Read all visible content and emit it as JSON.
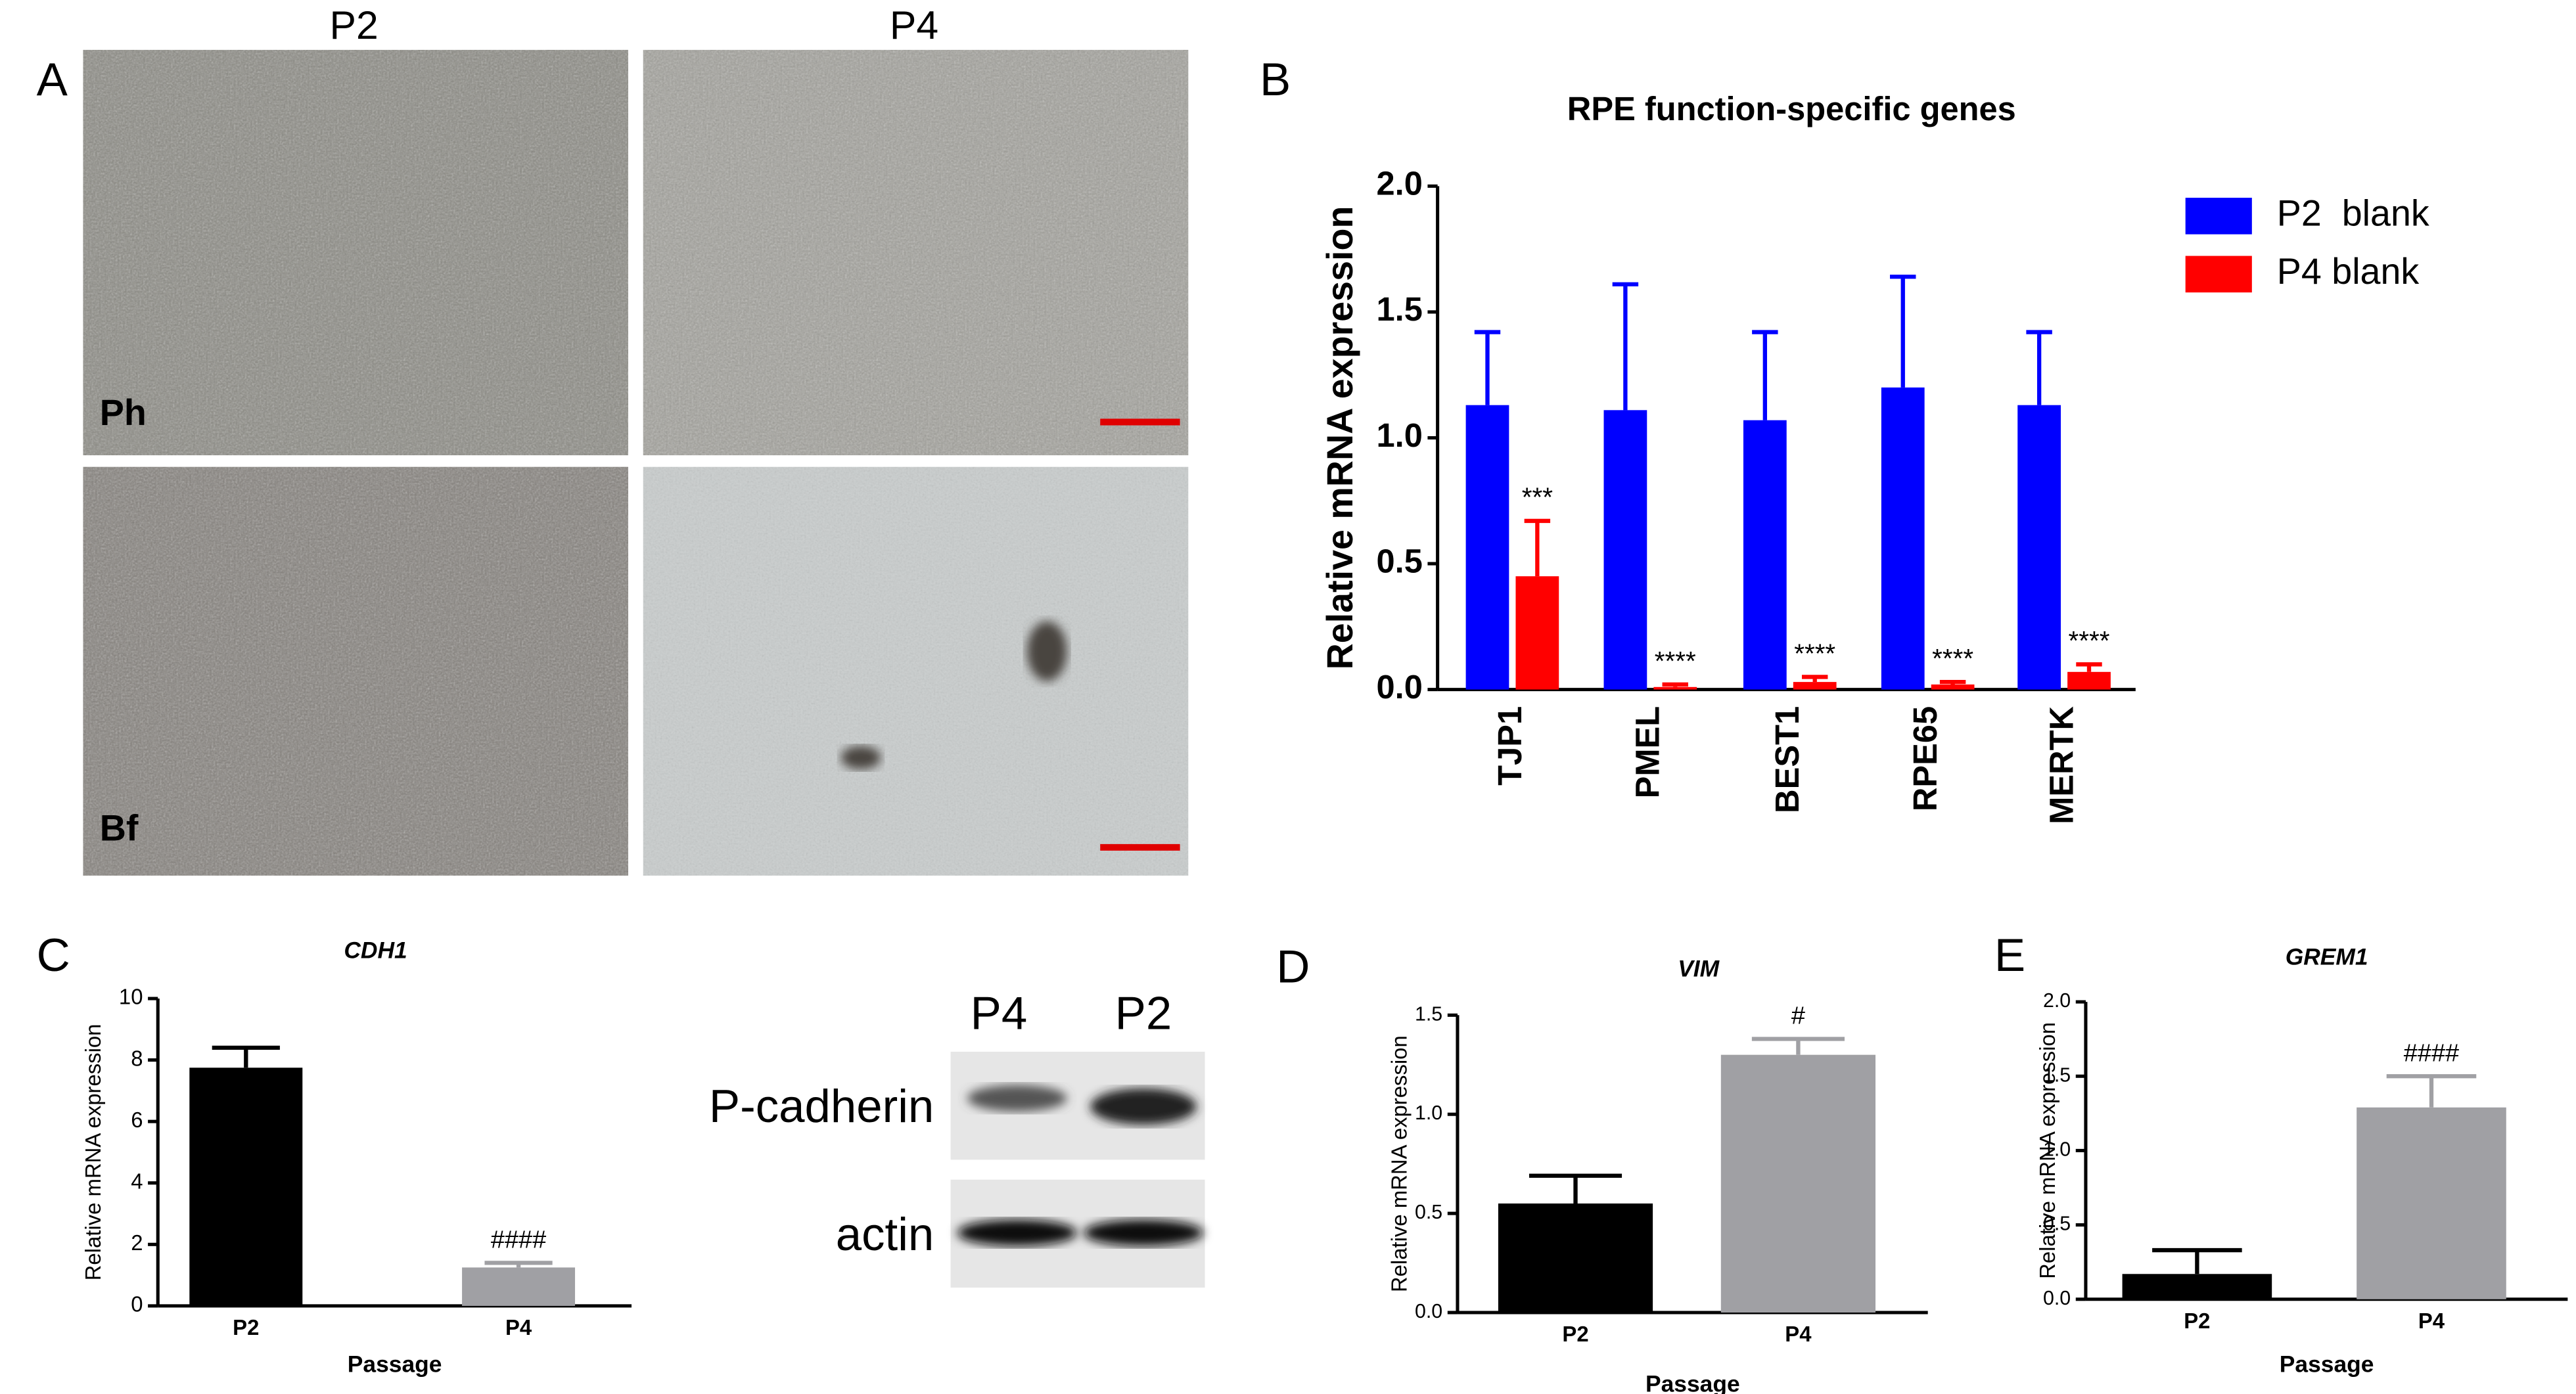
{
  "panel_labels": [
    "A",
    "B",
    "C",
    "D",
    "E"
  ],
  "micrographs": {
    "columns": [
      "P2",
      "P4"
    ],
    "rows": [
      "Ph",
      "Bf"
    ]
  },
  "western_blot": {
    "lanes": [
      "P4",
      "P2"
    ],
    "bands": [
      "P-cadherin",
      "actin"
    ]
  },
  "chart_data": [
    {
      "type": "bar",
      "title": "RPE function-specific genes",
      "y_label": "Relative mRNA expression",
      "categories": [
        "TJP1",
        "PMEL",
        "BEST1",
        "RPE65",
        "MERTK"
      ],
      "series": [
        {
          "name": "P2  blank",
          "color": "#0000ff",
          "values": [
            1.13,
            1.11,
            1.07,
            1.2,
            1.13
          ],
          "errors": [
            0.29,
            0.5,
            0.35,
            0.44,
            0.29
          ]
        },
        {
          "name": "P4 blank",
          "color": "#ff0000",
          "values": [
            0.45,
            0.01,
            0.03,
            0.02,
            0.07
          ],
          "errors": [
            0.22,
            0.01,
            0.02,
            0.01,
            0.03
          ],
          "annotations": [
            "***",
            "****",
            "****",
            "****",
            "****"
          ]
        }
      ],
      "ylim": [
        0,
        2
      ],
      "yticks": [
        {
          "value": 0,
          "label": "0.0"
        },
        {
          "value": 0.5,
          "label": "0.5"
        },
        {
          "value": 1,
          "label": "1.0"
        },
        {
          "value": 1.5,
          "label": "1.5"
        },
        {
          "value": 2,
          "label": "2.0"
        }
      ],
      "legend": "upper right"
    },
    {
      "type": "bar",
      "title": "CDH1",
      "x_label": "Passage",
      "y_label": "Relative mRNA expression",
      "categories": [
        "P2",
        "P4"
      ],
      "values": [
        7.75,
        1.25
      ],
      "errors": [
        0.65,
        0.15
      ],
      "colors": [
        "#000000",
        "#a0a0a4"
      ],
      "annotations": [
        null,
        "####"
      ],
      "ylim": [
        0,
        10
      ],
      "yticks": [
        0,
        2,
        4,
        6,
        8,
        10
      ]
    },
    {
      "type": "bar",
      "title": "VIM",
      "x_label": "Passage",
      "y_label": "Relative mRNA expression",
      "categories": [
        "P2",
        "P4"
      ],
      "values": [
        0.55,
        1.3
      ],
      "errors": [
        0.14,
        0.08
      ],
      "colors": [
        "#000000",
        "#a0a0a4"
      ],
      "annotations": [
        null,
        "#"
      ],
      "ylim": [
        0,
        1.5
      ],
      "yticks": [
        {
          "value": 0,
          "label": "0.0"
        },
        {
          "value": 0.5,
          "label": "0.5"
        },
        {
          "value": 1,
          "label": "1.0"
        },
        {
          "value": 1.5,
          "label": "1.5"
        }
      ]
    },
    {
      "type": "bar",
      "title": "GREM1",
      "x_label": "Passage",
      "y_label": "Relative mRNA expression",
      "categories": [
        "P2",
        "P4"
      ],
      "values": [
        0.17,
        1.29
      ],
      "errors": [
        0.16,
        0.21
      ],
      "colors": [
        "#000000",
        "#a0a0a4"
      ],
      "annotations": [
        null,
        "####"
      ],
      "ylim": [
        0,
        2
      ],
      "yticks": [
        {
          "value": 0,
          "label": "0.0"
        },
        {
          "value": 0.5,
          "label": "0.5"
        },
        {
          "value": 1,
          "label": "1.0"
        },
        {
          "value": 1.5,
          "label": "1.5"
        },
        {
          "value": 2,
          "label": "2.0"
        }
      ]
    }
  ]
}
